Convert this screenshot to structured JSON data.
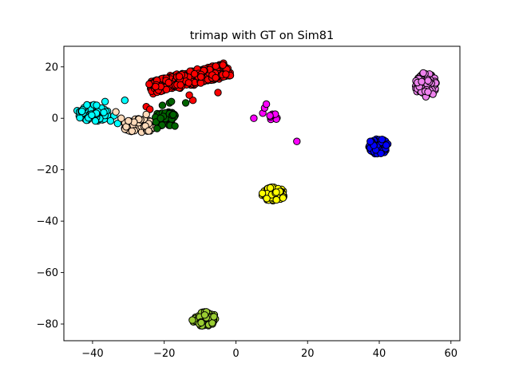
{
  "chart_data": {
    "type": "scatter",
    "title": "trimap with GT on Sim81",
    "xlabel": "",
    "ylabel": "",
    "xlim": [
      -48,
      62.5
    ],
    "ylim": [
      -86.5,
      28
    ],
    "xticks": [
      -40,
      -20,
      0,
      20,
      40,
      60
    ],
    "yticks": [
      20,
      0,
      -20,
      -40,
      -60,
      -80
    ],
    "xtick_labels": [
      "−40",
      "−20",
      "0",
      "20",
      "40",
      "60"
    ],
    "ytick_labels": [
      "20",
      "0",
      "−20",
      "−40",
      "−60",
      "−80"
    ],
    "grid": false,
    "legend": "none",
    "marker_edge_color": "#000000",
    "clusters": [
      {
        "color": "#ff0000",
        "shape": "band",
        "x0": -24,
        "y0": 12,
        "x1": -2,
        "y1": 19,
        "width": 5,
        "count": 420,
        "points": [
          [
            -25,
            4.5
          ],
          [
            -24,
            3.5
          ],
          [
            -12,
            7
          ],
          [
            -13,
            9
          ],
          [
            -5,
            10
          ]
        ]
      },
      {
        "color": "#00ffff",
        "shape": "blob",
        "cx": -40,
        "cy": 2,
        "rx": 4.5,
        "ry": 3.5,
        "count": 70,
        "points": [
          [
            -36.5,
            6.5
          ],
          [
            -34,
            1
          ],
          [
            -33,
            -2
          ],
          [
            -31,
            -2
          ],
          [
            -31,
            7
          ],
          [
            -35,
            -1
          ]
        ]
      },
      {
        "color": "#ffdab9",
        "shape": "blob",
        "cx": -27,
        "cy": -3,
        "rx": 4.5,
        "ry": 2.8,
        "count": 60,
        "points": [
          [
            -33.5,
            2.5
          ],
          [
            -32,
            0
          ],
          [
            -30,
            -1
          ],
          [
            -25,
            1.5
          ],
          [
            -29,
            -5
          ]
        ]
      },
      {
        "color": "#006400",
        "shape": "blob",
        "cx": -19.5,
        "cy": 0,
        "rx": 3.2,
        "ry": 3.2,
        "count": 55,
        "points": [
          [
            -20.5,
            5
          ],
          [
            -18.5,
            6
          ],
          [
            -18,
            6.5
          ],
          [
            -21,
            0
          ],
          [
            -17,
            -3
          ],
          [
            -22,
            -4
          ],
          [
            -14,
            6
          ]
        ]
      },
      {
        "color": "#ff00ff",
        "shape": "blob",
        "cx": 10.5,
        "cy": 0.5,
        "rx": 1.2,
        "ry": 1.2,
        "count": 10,
        "points": [
          [
            5,
            0
          ],
          [
            7.5,
            2
          ],
          [
            8,
            4
          ],
          [
            8.5,
            5.5
          ],
          [
            9.5,
            1
          ],
          [
            17,
            -9
          ]
        ]
      },
      {
        "color": "#ee82ee",
        "shape": "blob",
        "cx": 53,
        "cy": 13,
        "rx": 3,
        "ry": 4.8,
        "count": 90,
        "points": []
      },
      {
        "color": "#0000ff",
        "shape": "blob",
        "cx": 39.8,
        "cy": -11,
        "rx": 2.8,
        "ry": 3,
        "count": 70,
        "points": [
          [
            37.5,
            -9
          ]
        ]
      },
      {
        "color": "#ffff00",
        "shape": "blob",
        "cx": 10.5,
        "cy": -29.5,
        "rx": 3.2,
        "ry": 2.8,
        "count": 70,
        "points": []
      },
      {
        "color": "#9acd32",
        "shape": "blob",
        "cx": -8.8,
        "cy": -78,
        "rx": 3.4,
        "ry": 2.8,
        "count": 70,
        "points": []
      }
    ]
  }
}
